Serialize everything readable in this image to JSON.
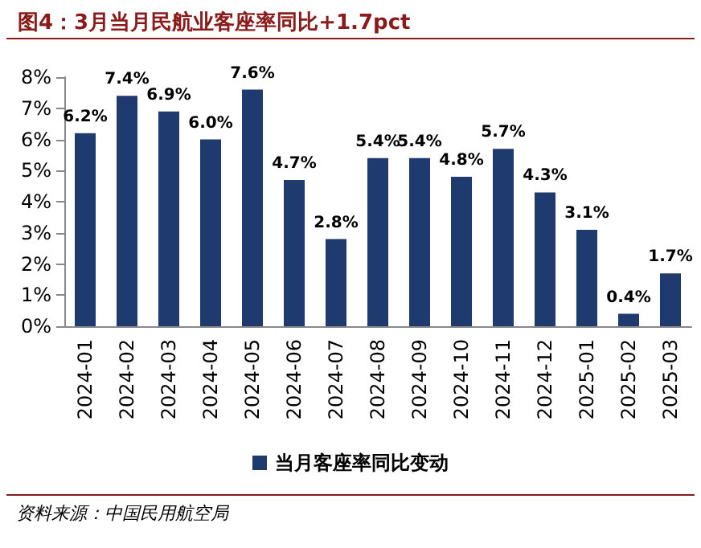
{
  "chart_data": {
    "type": "bar",
    "title": "图4：3月当月民航业客座率同比+1.7pct",
    "categories": [
      "2024-01",
      "2024-02",
      "2024-03",
      "2024-04",
      "2024-05",
      "2024-06",
      "2024-07",
      "2024-08",
      "2024-09",
      "2024-10",
      "2024-11",
      "2024-12",
      "2025-01",
      "2025-02",
      "2025-03"
    ],
    "series": [
      {
        "name": "当月客座率同比变动",
        "color": "#1f3a6e",
        "values": [
          6.2,
          7.4,
          6.9,
          6.0,
          7.6,
          4.7,
          2.8,
          5.4,
          5.4,
          4.8,
          5.7,
          4.3,
          3.1,
          0.4,
          1.7
        ],
        "value_labels": [
          "6.2%",
          "7.4%",
          "6.9%",
          "6.0%",
          "7.6%",
          "4.7%",
          "2.8%",
          "5.4%",
          "5.4%",
          "4.8%",
          "5.7%",
          "4.3%",
          "3.1%",
          "0.4%",
          "1.7%"
        ]
      }
    ],
    "ylim": [
      0,
      8
    ],
    "yticks": [
      {
        "value": 0,
        "label": "0%"
      },
      {
        "value": 1,
        "label": "1%"
      },
      {
        "value": 2,
        "label": "2%"
      },
      {
        "value": 3,
        "label": "3%"
      },
      {
        "value": 4,
        "label": "4%"
      },
      {
        "value": 5,
        "label": "5%"
      },
      {
        "value": 6,
        "label": "6%"
      },
      {
        "value": 7,
        "label": "7%"
      },
      {
        "value": 8,
        "label": "8%"
      }
    ],
    "legend": "bottom",
    "annotations": [
      "资料来源：中国民用航空局"
    ]
  }
}
